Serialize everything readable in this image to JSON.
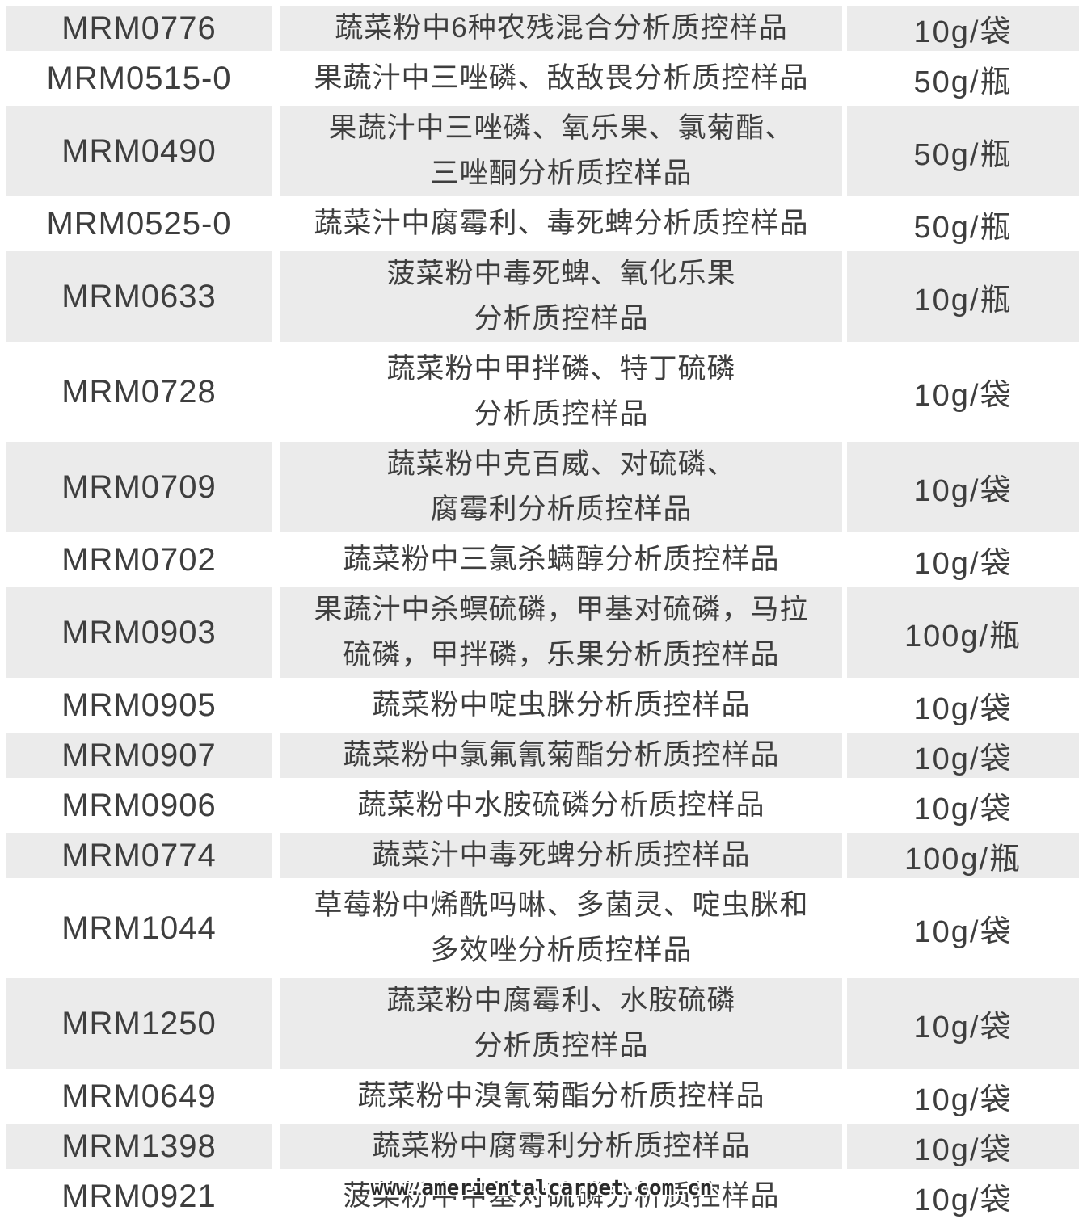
{
  "colors": {
    "shaded_row_bg": "#ebebeb",
    "plain_row_bg": "#ffffff",
    "text": "#3e3e3e",
    "watermark_text": "#2b2b2b"
  },
  "watermark": {
    "text": "www.amerientalcarpet.com.cn"
  },
  "table": {
    "rows": [
      {
        "code": "MRM0776",
        "description": "蔬菜粉中6种农残混合分析质控样品",
        "spec": "10g/袋"
      },
      {
        "code": "MRM0515-0",
        "description": "果蔬汁中三唑磷、敌敌畏分析质控样品",
        "spec": "50g/瓶"
      },
      {
        "code": "MRM0490",
        "description": "果蔬汁中三唑磷、氧乐果、氯菊酯、\n三唑酮分析质控样品",
        "spec": "50g/瓶"
      },
      {
        "code": "MRM0525-0",
        "description": "蔬菜汁中腐霉利、毒死蜱分析质控样品",
        "spec": "50g/瓶"
      },
      {
        "code": "MRM0633",
        "description": "菠菜粉中毒死蜱、氧化乐果\n分析质控样品",
        "spec": "10g/瓶"
      },
      {
        "code": "MRM0728",
        "description": "蔬菜粉中甲拌磷、特丁硫磷\n分析质控样品",
        "spec": "10g/袋"
      },
      {
        "code": "MRM0709",
        "description": "蔬菜粉中克百威、对硫磷、\n腐霉利分析质控样品",
        "spec": "10g/袋"
      },
      {
        "code": "MRM0702",
        "description": "蔬菜粉中三氯杀螨醇分析质控样品",
        "spec": "10g/袋"
      },
      {
        "code": "MRM0903",
        "description": "果蔬汁中杀螟硫磷，甲基对硫磷，马拉\n硫磷，甲拌磷，乐果分析质控样品",
        "spec": "100g/瓶"
      },
      {
        "code": "MRM0905",
        "description": "蔬菜粉中啶虫脒分析质控样品",
        "spec": "10g/袋"
      },
      {
        "code": "MRM0907",
        "description": "蔬菜粉中氯氟氰菊酯分析质控样品",
        "spec": "10g/袋"
      },
      {
        "code": "MRM0906",
        "description": "蔬菜粉中水胺硫磷分析质控样品",
        "spec": "10g/袋"
      },
      {
        "code": "MRM0774",
        "description": "蔬菜汁中毒死蜱分析质控样品",
        "spec": "100g/瓶"
      },
      {
        "code": "MRM1044",
        "description": "草莓粉中烯酰吗啉、多菌灵、啶虫脒和\n多效唑分析质控样品",
        "spec": "10g/袋"
      },
      {
        "code": "MRM1250",
        "description": "蔬菜粉中腐霉利、水胺硫磷\n分析质控样品",
        "spec": "10g/袋"
      },
      {
        "code": "MRM0649",
        "description": "蔬菜粉中溴氰菊酯分析质控样品",
        "spec": "10g/袋"
      },
      {
        "code": "MRM1398",
        "description": "蔬菜粉中腐霉利分析质控样品",
        "spec": "10g/袋"
      },
      {
        "code": "MRM0921",
        "description": "菠菜粉中甲基对硫磷分析质控样品",
        "spec": "10g/袋"
      }
    ]
  }
}
